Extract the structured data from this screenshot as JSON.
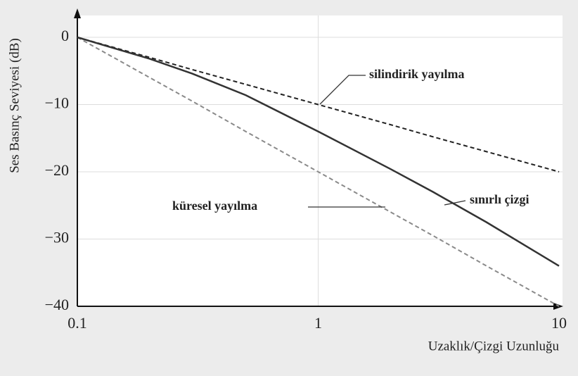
{
  "chart_data": {
    "type": "line",
    "ylabel": "Ses Basınç Seviyesi (dB)",
    "xlabel": "Uzaklık/Çizgi Uzunluğu",
    "xscale": "log",
    "x": [
      0.1,
      0.2,
      0.3,
      0.5,
      1,
      2,
      3,
      5,
      10
    ],
    "series": [
      {
        "name": "silindirik yayılma",
        "color": "#222222",
        "dash": true,
        "values": [
          0,
          -3,
          -4.8,
          -7,
          -10,
          -13,
          -14.8,
          -17,
          -20
        ]
      },
      {
        "name": "küresel yayılma",
        "color": "#8a8a8a",
        "dash": true,
        "values": [
          0,
          -6,
          -9.5,
          -14,
          -20,
          -26,
          -29.5,
          -34,
          -40
        ]
      },
      {
        "name": "sınırlı çizgi",
        "color": "#333333",
        "dash": false,
        "values": [
          0,
          -3.2,
          -5.4,
          -8.6,
          -14,
          -19.6,
          -23,
          -27.5,
          -34
        ]
      }
    ],
    "xlim": [
      0.1,
      10
    ],
    "xticks": [
      0.1,
      1,
      10
    ],
    "ylim": [
      -40,
      0
    ],
    "yticks": [
      {
        "value": -40,
        "label": "−40"
      },
      {
        "value": -30,
        "label": "−30"
      },
      {
        "value": -20,
        "label": "−20"
      },
      {
        "value": -10,
        "label": "−10"
      },
      0
    ],
    "grid": true
  }
}
